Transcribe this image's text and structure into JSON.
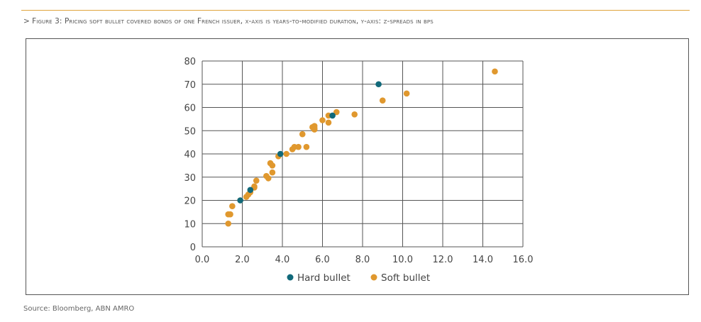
{
  "caption": {
    "prefix": "> ",
    "text": "Figure 3: Pricing soft bullet covered bonds of one French issuer, x-axis is years-to-modified duration, y-axis: z-spreads in bps"
  },
  "source": "Source: Bloomberg, ABN AMRO",
  "colors": {
    "hard": "#11697a",
    "soft": "#e0982e",
    "grid": "#555555",
    "rule": "#e0a43c"
  },
  "chart_data": {
    "type": "scatter",
    "title": "",
    "xlabel": "",
    "ylabel": "",
    "xlim": [
      0,
      16
    ],
    "ylim": [
      0,
      80
    ],
    "xticks": [
      "0.0",
      "2.0",
      "4.0",
      "6.0",
      "8.0",
      "10.0",
      "12.0",
      "14.0",
      "16.0"
    ],
    "yticks": [
      "0",
      "10",
      "20",
      "30",
      "40",
      "50",
      "60",
      "70",
      "80"
    ],
    "grid": true,
    "legend": "bottom",
    "series": [
      {
        "name": "Hard bullet",
        "color": "#11697a",
        "points": [
          [
            1.9,
            20
          ],
          [
            2.4,
            24.5
          ],
          [
            3.9,
            40
          ],
          [
            6.5,
            56.5
          ],
          [
            8.8,
            70
          ]
        ]
      },
      {
        "name": "Soft bullet",
        "color": "#e0982e",
        "points": [
          [
            1.3,
            10
          ],
          [
            1.3,
            14
          ],
          [
            1.4,
            14
          ],
          [
            1.5,
            17.5
          ],
          [
            1.9,
            20
          ],
          [
            2.2,
            21.5
          ],
          [
            2.3,
            22.5
          ],
          [
            2.4,
            23.5
          ],
          [
            2.6,
            25.5
          ],
          [
            2.6,
            26
          ],
          [
            2.7,
            28.5
          ],
          [
            3.2,
            30.5
          ],
          [
            3.3,
            29.5
          ],
          [
            3.4,
            36
          ],
          [
            3.5,
            32
          ],
          [
            3.5,
            35
          ],
          [
            3.8,
            39
          ],
          [
            4.2,
            40
          ],
          [
            4.5,
            42
          ],
          [
            4.6,
            43
          ],
          [
            4.8,
            43
          ],
          [
            5.0,
            48.5
          ],
          [
            5.2,
            43
          ],
          [
            5.5,
            51.5
          ],
          [
            5.6,
            51
          ],
          [
            5.6,
            52
          ],
          [
            5.6,
            50.5
          ],
          [
            6.0,
            54.5
          ],
          [
            6.3,
            53.5
          ],
          [
            6.3,
            56.5
          ],
          [
            6.7,
            58
          ],
          [
            7.6,
            57
          ],
          [
            9.0,
            63
          ],
          [
            10.2,
            66
          ],
          [
            14.6,
            75.5
          ]
        ]
      }
    ]
  }
}
